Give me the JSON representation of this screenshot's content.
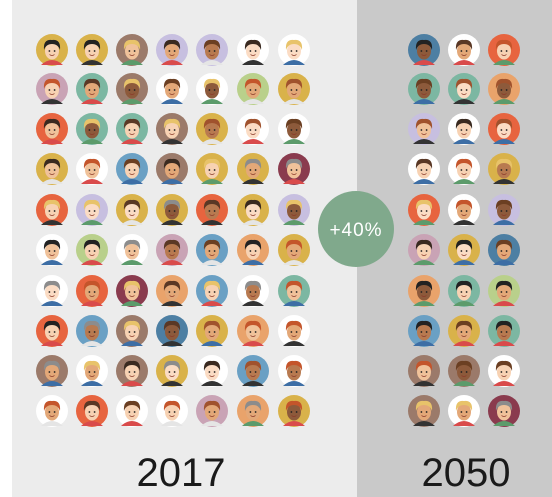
{
  "left": {
    "year": "2017"
  },
  "right": {
    "year": "2050"
  },
  "change": {
    "label": "+40%"
  }
}
